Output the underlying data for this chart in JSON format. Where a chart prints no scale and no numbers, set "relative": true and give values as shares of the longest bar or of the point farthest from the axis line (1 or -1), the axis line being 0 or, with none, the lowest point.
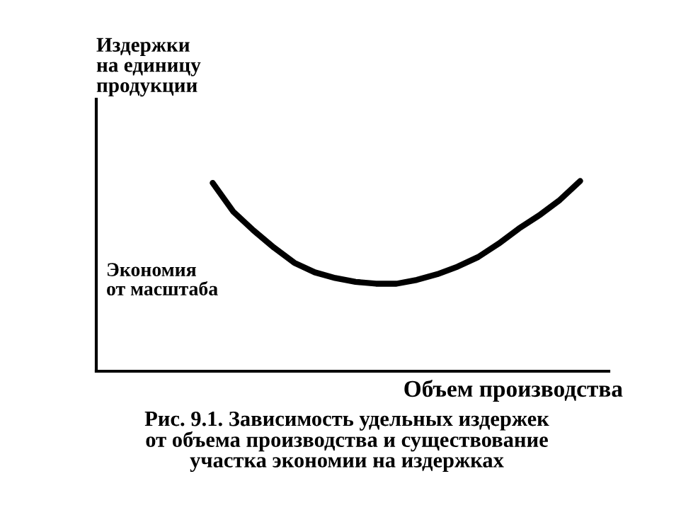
{
  "chart_data": {
    "type": "line",
    "relative": true,
    "ylabel": "Издержки\nна единицу\nпродукции",
    "xlabel": "Объем производства",
    "categories": [
      null,
      null,
      null,
      null,
      null,
      null,
      null,
      null,
      null,
      null,
      null,
      null,
      null,
      null,
      null,
      null,
      null,
      null,
      null
    ],
    "series": [
      {
        "color": "#000000",
        "values": [
          0.99,
          0.84,
          0.74,
          0.65,
          0.57,
          0.52,
          0.49,
          0.47,
          0.46,
          0.46,
          0.48,
          0.51,
          0.55,
          0.6,
          0.67,
          0.75,
          0.82,
          0.9,
          1.0
        ]
      }
    ],
    "annotations": [
      "Экономия\nот масштаба",
      "Рис. 9.1. Зависимость удельных издержек\nот объема производства и существование\nучастка экономии на издержках"
    ],
    "grid": false,
    "marker": "none",
    "line_style": "solid"
  }
}
